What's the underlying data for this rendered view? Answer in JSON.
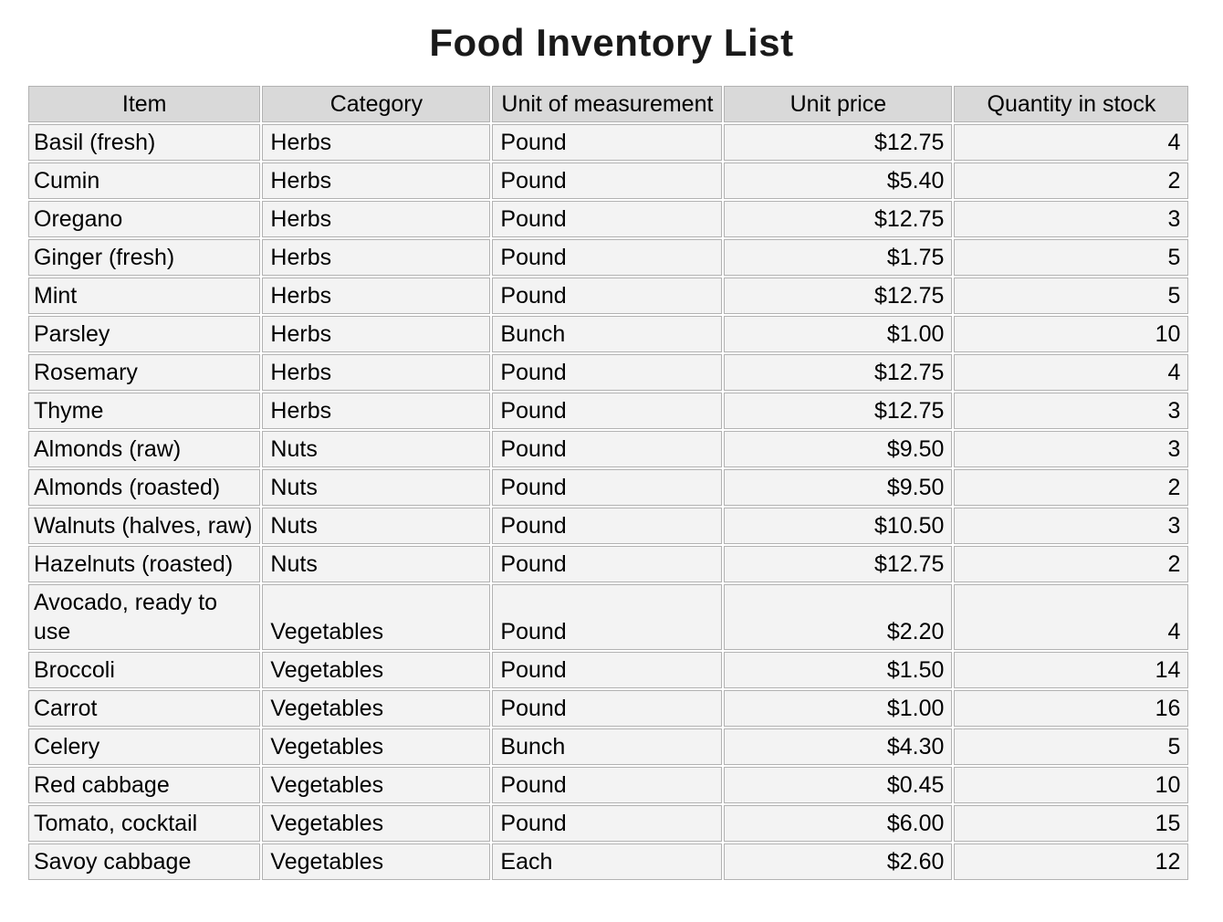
{
  "page": {
    "title": "Food Inventory List"
  },
  "chart_data": {
    "type": "table",
    "title": "Food Inventory List",
    "columns": [
      "Item",
      "Category",
      "Unit of measurement",
      "Unit price",
      "Quantity in stock"
    ],
    "column_keys": [
      "item",
      "category",
      "unit",
      "price",
      "qty"
    ],
    "rows": [
      [
        "Basil (fresh)",
        "Herbs",
        "Pound",
        "$12.75",
        "4"
      ],
      [
        "Cumin",
        "Herbs",
        "Pound",
        "$5.40",
        "2"
      ],
      [
        "Oregano",
        "Herbs",
        "Pound",
        "$12.75",
        "3"
      ],
      [
        "Ginger (fresh)",
        "Herbs",
        "Pound",
        "$1.75",
        "5"
      ],
      [
        "Mint",
        "Herbs",
        "Pound",
        "$12.75",
        "5"
      ],
      [
        "Parsley",
        "Herbs",
        "Bunch",
        "$1.00",
        "10"
      ],
      [
        "Rosemary",
        "Herbs",
        "Pound",
        "$12.75",
        "4"
      ],
      [
        "Thyme",
        "Herbs",
        "Pound",
        "$12.75",
        "3"
      ],
      [
        "Almonds (raw)",
        "Nuts",
        "Pound",
        "$9.50",
        "3"
      ],
      [
        "Almonds (roasted)",
        "Nuts",
        "Pound",
        "$9.50",
        "2"
      ],
      [
        "Walnuts (halves, raw)",
        "Nuts",
        "Pound",
        "$10.50",
        "3"
      ],
      [
        "Hazelnuts (roasted)",
        "Nuts",
        "Pound",
        "$12.75",
        "2"
      ],
      [
        "Avocado, ready to use",
        "Vegetables",
        "Pound",
        "$2.20",
        "4"
      ],
      [
        "Broccoli",
        "Vegetables",
        "Pound",
        "$1.50",
        "14"
      ],
      [
        "Carrot",
        "Vegetables",
        "Pound",
        "$1.00",
        "16"
      ],
      [
        "Celery",
        "Vegetables",
        "Bunch",
        "$4.30",
        "5"
      ],
      [
        "Red cabbage",
        "Vegetables",
        "Pound",
        "$0.45",
        "10"
      ],
      [
        "Tomato, cocktail",
        "Vegetables",
        "Pound",
        "$6.00",
        "15"
      ],
      [
        "Savoy cabbage",
        "Vegetables",
        "Each",
        "$2.60",
        "12"
      ]
    ],
    "layout": {
      "legend": "none",
      "grid": "all-cell-borders",
      "numeric_right_aligned_columns": [
        "Unit price",
        "Quantity in stock"
      ],
      "two_line_item_rows": [
        12
      ]
    }
  },
  "colors": {
    "page_bg": "#ffffff",
    "header_bg": "#d9d9d9",
    "cell_bg": "#f3f3f3",
    "border": "#b2b2b2",
    "text": "#000000",
    "title": "#1a1a1a"
  }
}
